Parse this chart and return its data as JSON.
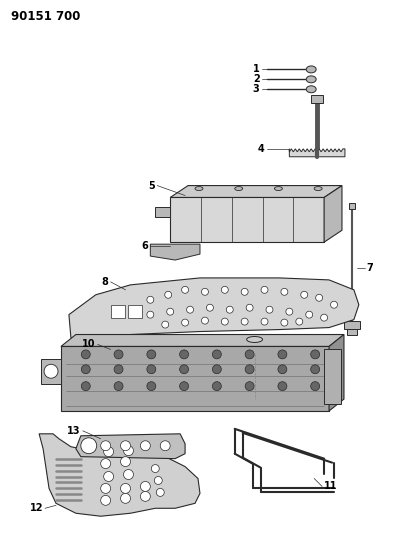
{
  "title": "90151 700",
  "bg_color": "#ffffff",
  "fig_width": 3.94,
  "fig_height": 5.33,
  "dpi": 100,
  "line_color": "#2a2a2a",
  "fill_light": "#d8d8d8",
  "fill_mid": "#b8b8b8",
  "fill_dark": "#888888",
  "label_fontsize": 7.0
}
